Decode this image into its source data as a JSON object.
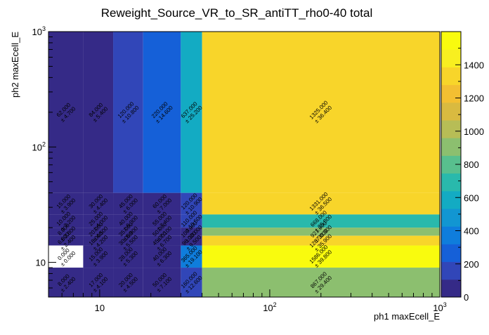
{
  "chart_data": {
    "type": "heatmap",
    "title": "Reweight_Source_VR_to_SR_antiTT_rho0-40 total",
    "xlabel": "ph1 maxEcell_E",
    "ylabel": "ph2 maxEcell_E",
    "xscale": "log",
    "yscale": "log",
    "xlim": [
      5,
      1000
    ],
    "ylim": [
      5,
      1000
    ],
    "x_ticks": [
      {
        "value": 10,
        "label": "10"
      },
      {
        "value": 100,
        "label": "10^2"
      },
      {
        "value": 1000,
        "label": "10^3"
      }
    ],
    "y_ticks": [
      {
        "value": 10,
        "label": "10"
      },
      {
        "value": 100,
        "label": "10^2"
      },
      {
        "value": 1000,
        "label": "10^3"
      }
    ],
    "x_edges": [
      5,
      8,
      12,
      18,
      30,
      40,
      1000
    ],
    "y_edges": [
      5,
      9,
      14,
      17,
      20,
      26,
      40,
      1000
    ],
    "z_range": [
      0,
      1600
    ],
    "colorbar_ticks": [
      0,
      200,
      400,
      600,
      800,
      1000,
      1200,
      1400
    ],
    "palette": [
      "#352a87",
      "#3146b8",
      "#1560d8",
      "#0f7ddc",
      "#1296d2",
      "#13abc3",
      "#29b9ac",
      "#58bf8e",
      "#8cbf6f",
      "#b7bd56",
      "#d9ba40",
      "#f3bf32",
      "#f8d52a",
      "#f8ef20",
      "#f9fb0e"
    ],
    "cells": [
      {
        "x_bin": 0,
        "y_bin": 6,
        "value": 62.0,
        "error": 4.7
      },
      {
        "x_bin": 1,
        "y_bin": 6,
        "value": 84.0,
        "error": 5.4
      },
      {
        "x_bin": 2,
        "y_bin": 6,
        "value": 120.0,
        "error": 10.8
      },
      {
        "x_bin": 3,
        "y_bin": 6,
        "value": 220.0,
        "error": 14.6
      },
      {
        "x_bin": 4,
        "y_bin": 6,
        "value": 637.0,
        "error": 25.2
      },
      {
        "x_bin": 5,
        "y_bin": 6,
        "value": 1325.0,
        "error": 36.4
      },
      {
        "x_bin": 0,
        "y_bin": 5,
        "value": 15.0,
        "error": 3.9
      },
      {
        "x_bin": 1,
        "y_bin": 5,
        "value": 30.0,
        "error": 4.4
      },
      {
        "x_bin": 2,
        "y_bin": 5,
        "value": 45.0,
        "error": 6.0
      },
      {
        "x_bin": 3,
        "y_bin": 5,
        "value": 60.0,
        "error": 7.0
      },
      {
        "x_bin": 4,
        "y_bin": 5,
        "value": 120.0,
        "error": 10.9
      },
      {
        "x_bin": 5,
        "y_bin": 5,
        "value": 1331.0,
        "error": 36.5
      },
      {
        "x_bin": 0,
        "y_bin": 4,
        "value": 10.0,
        "error": 3.2
      },
      {
        "x_bin": 1,
        "y_bin": 4,
        "value": 25.0,
        "error": 4.0
      },
      {
        "x_bin": 2,
        "y_bin": 4,
        "value": 40.0,
        "error": 6.3
      },
      {
        "x_bin": 3,
        "y_bin": 4,
        "value": 55.0,
        "error": 7.4
      },
      {
        "x_bin": 4,
        "y_bin": 4,
        "value": 110.0,
        "error": 10.5
      },
      {
        "x_bin": 5,
        "y_bin": 4,
        "value": 668.0,
        "error": 25.8
      },
      {
        "x_bin": 0,
        "y_bin": 3,
        "value": 8.0,
        "error": 2.8
      },
      {
        "x_bin": 1,
        "y_bin": 3,
        "value": 20.0,
        "error": 4.5
      },
      {
        "x_bin": 2,
        "y_bin": 3,
        "value": 35.0,
        "error": 5.9
      },
      {
        "x_bin": 3,
        "y_bin": 3,
        "value": 50.0,
        "error": 7.1
      },
      {
        "x_bin": 4,
        "y_bin": 3,
        "value": 100.0,
        "error": 10.0
      },
      {
        "x_bin": 5,
        "y_bin": 3,
        "value": 921.0,
        "error": 30.3
      },
      {
        "x_bin": 0,
        "y_bin": 2,
        "value": 6.0,
        "error": 2.4
      },
      {
        "x_bin": 1,
        "y_bin": 2,
        "value": 18.0,
        "error": 4.2
      },
      {
        "x_bin": 2,
        "y_bin": 2,
        "value": 30.0,
        "error": 5.5
      },
      {
        "x_bin": 3,
        "y_bin": 2,
        "value": 45.0,
        "error": 6.7
      },
      {
        "x_bin": 4,
        "y_bin": 2,
        "value": 90.0,
        "error": 9.5
      },
      {
        "x_bin": 5,
        "y_bin": 2,
        "value": 1287.0,
        "error": 35.9
      },
      {
        "x_bin": 0,
        "y_bin": 1,
        "value": 0.0,
        "error": 0.0
      },
      {
        "x_bin": 1,
        "y_bin": 1,
        "value": 15.0,
        "error": 3.9
      },
      {
        "x_bin": 2,
        "y_bin": 1,
        "value": 28.0,
        "error": 5.3
      },
      {
        "x_bin": 3,
        "y_bin": 1,
        "value": 40.0,
        "error": 6.3
      },
      {
        "x_bin": 4,
        "y_bin": 1,
        "value": 365.0,
        "error": 19.1
      },
      {
        "x_bin": 5,
        "y_bin": 1,
        "value": 1586.0,
        "error": 39.8
      },
      {
        "x_bin": 0,
        "y_bin": 0,
        "value": 8.0,
        "error": 2.4
      },
      {
        "x_bin": 1,
        "y_bin": 0,
        "value": 17.0,
        "error": 4.1
      },
      {
        "x_bin": 2,
        "y_bin": 0,
        "value": 20.0,
        "error": 4.5
      },
      {
        "x_bin": 3,
        "y_bin": 0,
        "value": 50.0,
        "error": 7.1
      },
      {
        "x_bin": 4,
        "y_bin": 0,
        "value": 160.0,
        "error": 12.6
      },
      {
        "x_bin": 5,
        "y_bin": 0,
        "value": 867.0,
        "error": 29.4
      }
    ]
  }
}
